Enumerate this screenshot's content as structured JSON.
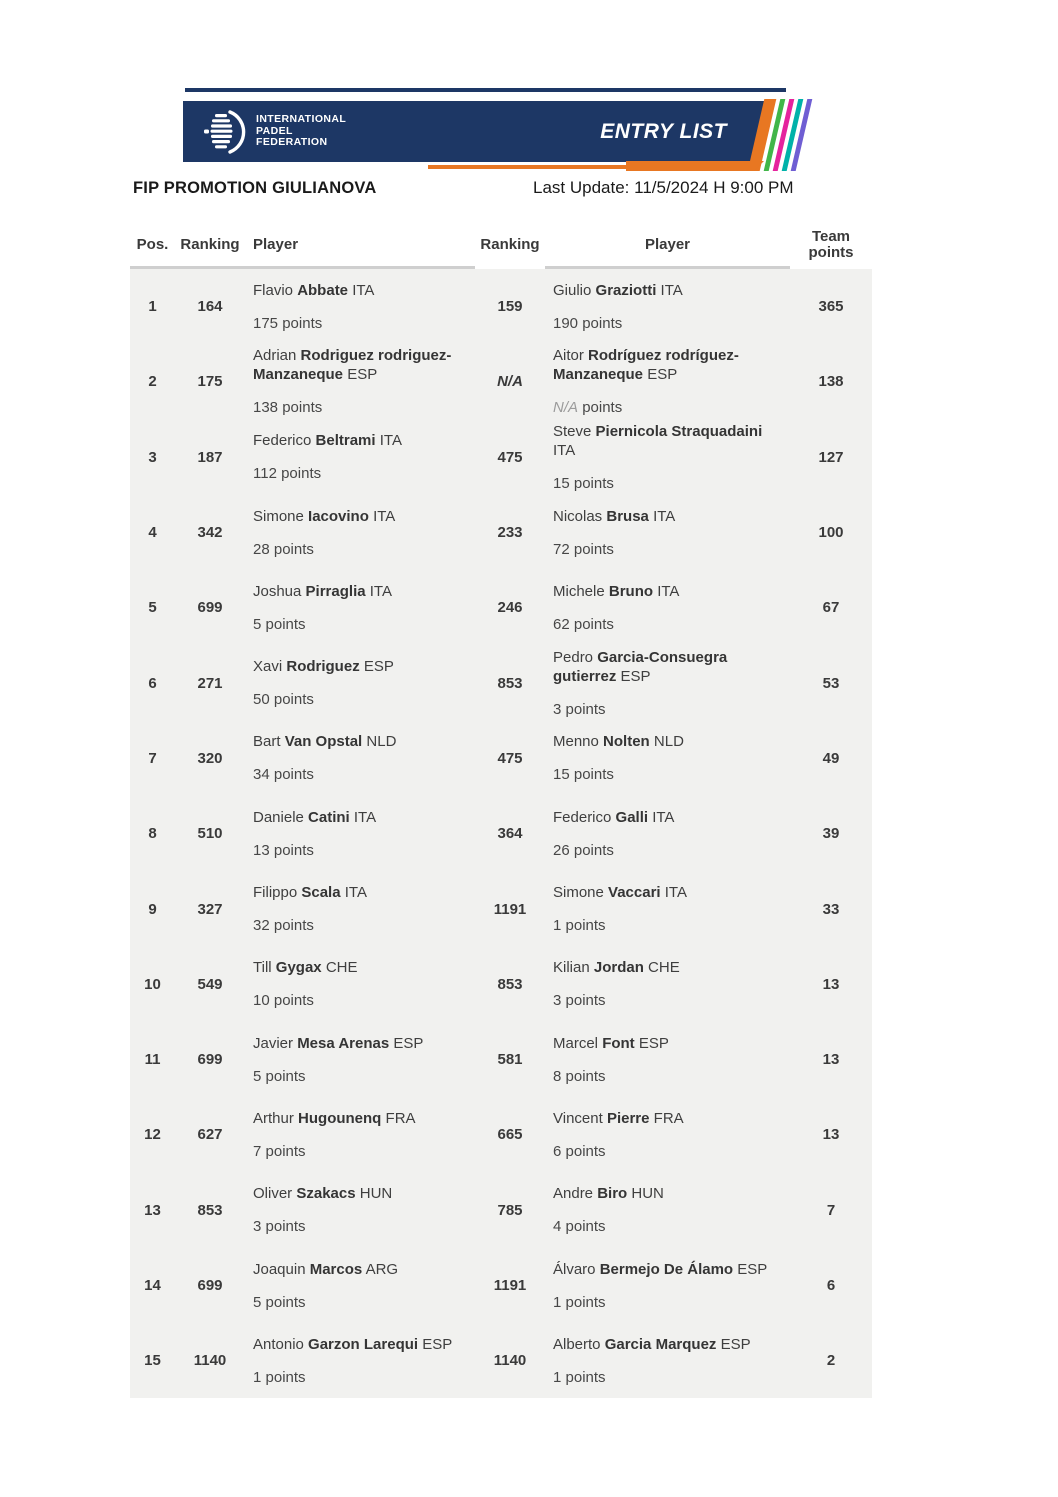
{
  "header": {
    "logo_icon": "ipf-ball-icon",
    "logo_lines": [
      "INTERNATIONAL",
      "PADEL",
      "FEDERATION"
    ],
    "banner_label": "ENTRY LIST",
    "stripe_colors": [
      "#e87722",
      "#41b649",
      "#e5239d",
      "#00b2a9",
      "#6f5ed3"
    ],
    "stripe_widths": [
      12,
      5,
      5,
      5,
      5
    ]
  },
  "title": {
    "event": "FIP PROMOTION GIULIANOVA",
    "last_update": "Last Update: 11/5/2024 H 9:00 PM"
  },
  "labels": {
    "points": "points"
  },
  "colors": {
    "navy": "#1d3765",
    "orange": "#e87722",
    "row_background": "#f1f1ef",
    "divider": "#cfcfcf"
  },
  "table": {
    "columns": {
      "pos": "Pos.",
      "ranking1": "Ranking",
      "player1": "Player",
      "ranking2": "Ranking",
      "player2": "Player",
      "team": "Team points"
    },
    "rows": [
      {
        "pos": "1",
        "r1": "164",
        "p1": {
          "first": "Flavio",
          "last": "Abbate",
          "country": "ITA",
          "pts": "175"
        },
        "r2": "159",
        "p2": {
          "first": "Giulio",
          "last": "Graziotti",
          "country": "ITA",
          "pts": "190"
        },
        "team": "365"
      },
      {
        "pos": "2",
        "r1": "175",
        "p1": {
          "first": "Adrian",
          "last": "Rodriguez rodriguez-Manzaneque",
          "country": "ESP",
          "pts": "138"
        },
        "r2": "N/A",
        "p2": {
          "first": "Aitor",
          "last": "Rodríguez rodríguez-Manzaneque",
          "country": "ESP",
          "pts": "N/A"
        },
        "team": "138"
      },
      {
        "pos": "3",
        "r1": "187",
        "p1": {
          "first": "Federico",
          "last": "Beltrami",
          "country": "ITA",
          "pts": "112"
        },
        "r2": "475",
        "p2": {
          "first": "Steve",
          "last": "Piernicola Straquadaini",
          "country": "ITA",
          "pts": "15"
        },
        "team": "127"
      },
      {
        "pos": "4",
        "r1": "342",
        "p1": {
          "first": "Simone",
          "last": "Iacovino",
          "country": "ITA",
          "pts": "28"
        },
        "r2": "233",
        "p2": {
          "first": "Nicolas",
          "last": "Brusa",
          "country": "ITA",
          "pts": "72"
        },
        "team": "100"
      },
      {
        "pos": "5",
        "r1": "699",
        "p1": {
          "first": "Joshua",
          "last": "Pirraglia",
          "country": "ITA",
          "pts": "5"
        },
        "r2": "246",
        "p2": {
          "first": "Michele",
          "last": "Bruno",
          "country": "ITA",
          "pts": "62"
        },
        "team": "67"
      },
      {
        "pos": "6",
        "r1": "271",
        "p1": {
          "first": "Xavi",
          "last": "Rodriguez",
          "country": "ESP",
          "pts": "50"
        },
        "r2": "853",
        "p2": {
          "first": "Pedro",
          "last": "Garcia-Consuegra gutierrez",
          "country": "ESP",
          "pts": "3"
        },
        "team": "53"
      },
      {
        "pos": "7",
        "r1": "320",
        "p1": {
          "first": "Bart",
          "last": "Van Opstal",
          "country": "NLD",
          "pts": "34"
        },
        "r2": "475",
        "p2": {
          "first": "Menno",
          "last": "Nolten",
          "country": "NLD",
          "pts": "15"
        },
        "team": "49"
      },
      {
        "pos": "8",
        "r1": "510",
        "p1": {
          "first": "Daniele",
          "last": "Catini",
          "country": "ITA",
          "pts": "13"
        },
        "r2": "364",
        "p2": {
          "first": "Federico",
          "last": "Galli",
          "country": "ITA",
          "pts": "26"
        },
        "team": "39"
      },
      {
        "pos": "9",
        "r1": "327",
        "p1": {
          "first": "Filippo",
          "last": "Scala",
          "country": "ITA",
          "pts": "32"
        },
        "r2": "1191",
        "p2": {
          "first": "Simone",
          "last": "Vaccari",
          "country": "ITA",
          "pts": "1"
        },
        "team": "33"
      },
      {
        "pos": "10",
        "r1": "549",
        "p1": {
          "first": "Till",
          "last": "Gygax",
          "country": "CHE",
          "pts": "10"
        },
        "r2": "853",
        "p2": {
          "first": "Kilian",
          "last": "Jordan",
          "country": "CHE",
          "pts": "3"
        },
        "team": "13"
      },
      {
        "pos": "11",
        "r1": "699",
        "p1": {
          "first": "Javier",
          "last": "Mesa Arenas",
          "country": "ESP",
          "pts": "5"
        },
        "r2": "581",
        "p2": {
          "first": "Marcel",
          "last": "Font",
          "country": "ESP",
          "pts": "8"
        },
        "team": "13"
      },
      {
        "pos": "12",
        "r1": "627",
        "p1": {
          "first": "Arthur",
          "last": "Hugounenq",
          "country": "FRA",
          "pts": "7"
        },
        "r2": "665",
        "p2": {
          "first": "Vincent",
          "last": "Pierre",
          "country": "FRA",
          "pts": "6"
        },
        "team": "13"
      },
      {
        "pos": "13",
        "r1": "853",
        "p1": {
          "first": "Oliver",
          "last": "Szakacs",
          "country": "HUN",
          "pts": "3"
        },
        "r2": "785",
        "p2": {
          "first": "Andre",
          "last": "Biro",
          "country": "HUN",
          "pts": "4"
        },
        "team": "7"
      },
      {
        "pos": "14",
        "r1": "699",
        "p1": {
          "first": "Joaquin",
          "last": "Marcos",
          "country": "ARG",
          "pts": "5"
        },
        "r2": "1191",
        "p2": {
          "first": "Álvaro",
          "last": "Bermejo De Álamo",
          "country": "ESP",
          "pts": "1"
        },
        "team": "6"
      },
      {
        "pos": "15",
        "r1": "1140",
        "p1": {
          "first": "Antonio",
          "last": "Garzon Larequi",
          "country": "ESP",
          "pts": "1"
        },
        "r2": "1140",
        "p2": {
          "first": "Alberto",
          "last": "Garcia Marquez",
          "country": "ESP",
          "pts": "1"
        },
        "team": "2"
      }
    ]
  }
}
